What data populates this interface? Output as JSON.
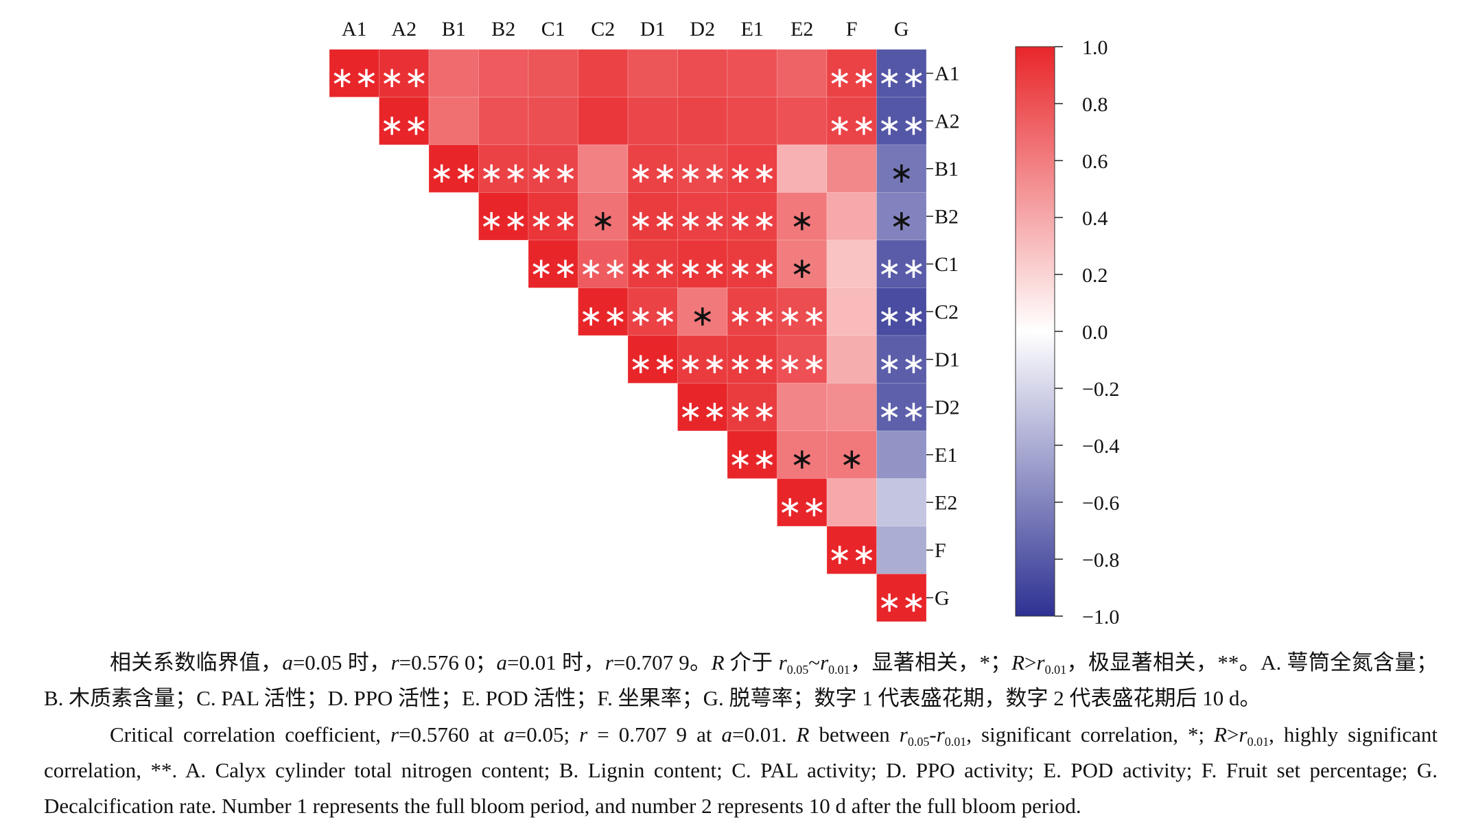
{
  "chart_data": {
    "type": "heatmap",
    "variables": [
      "A1",
      "A2",
      "B1",
      "B2",
      "C1",
      "C2",
      "D1",
      "D2",
      "E1",
      "E2",
      "F",
      "G"
    ],
    "x_labels": [
      "A1",
      "A2",
      "B1",
      "B2",
      "C1",
      "C2",
      "D1",
      "D2",
      "E1",
      "E2",
      "F",
      "G"
    ],
    "y_labels": [
      "A1",
      "A2",
      "B1",
      "B2",
      "C1",
      "C2",
      "D1",
      "D2",
      "E1",
      "E2",
      "F",
      "G"
    ],
    "matrix": [
      [
        1.0,
        0.95,
        0.68,
        0.76,
        0.78,
        0.87,
        0.78,
        0.82,
        0.8,
        0.72,
        0.87,
        -0.82
      ],
      [
        null,
        1.0,
        0.66,
        0.8,
        0.81,
        0.92,
        0.85,
        0.86,
        0.84,
        0.8,
        0.86,
        -0.82
      ],
      [
        null,
        null,
        1.0,
        0.87,
        0.86,
        0.58,
        0.87,
        0.84,
        0.88,
        0.36,
        0.55,
        -0.66
      ],
      [
        null,
        null,
        null,
        1.0,
        0.93,
        0.65,
        0.9,
        0.88,
        0.88,
        0.62,
        0.4,
        -0.6
      ],
      [
        null,
        null,
        null,
        null,
        1.0,
        0.75,
        0.9,
        0.93,
        0.9,
        0.6,
        0.28,
        -0.79
      ],
      [
        null,
        null,
        null,
        null,
        null,
        1.0,
        0.87,
        0.62,
        0.87,
        0.82,
        0.32,
        -0.87
      ],
      [
        null,
        null,
        null,
        null,
        null,
        null,
        1.0,
        0.9,
        0.9,
        0.8,
        0.38,
        -0.78
      ],
      [
        null,
        null,
        null,
        null,
        null,
        null,
        null,
        1.0,
        0.9,
        0.56,
        0.52,
        -0.77
      ],
      [
        null,
        null,
        null,
        null,
        null,
        null,
        null,
        null,
        1.0,
        0.62,
        0.62,
        -0.52
      ],
      [
        null,
        null,
        null,
        null,
        null,
        null,
        null,
        null,
        null,
        1.0,
        0.4,
        -0.28
      ],
      [
        null,
        null,
        null,
        null,
        null,
        null,
        null,
        null,
        null,
        null,
        1.0,
        -0.4
      ],
      [
        null,
        null,
        null,
        null,
        null,
        null,
        null,
        null,
        null,
        null,
        null,
        1.0
      ]
    ],
    "significance": [
      [
        "**",
        "**",
        "",
        "",
        "",
        "",
        "",
        "",
        "",
        "",
        "**",
        "**"
      ],
      [
        "",
        "**",
        "",
        "",
        "",
        "",
        "",
        "",
        "",
        "",
        "**",
        "**"
      ],
      [
        "",
        "",
        "**",
        "**",
        "**",
        "",
        "**",
        "**",
        "**",
        "",
        "",
        "*"
      ],
      [
        "",
        "",
        "",
        "**",
        "**",
        "*",
        "**",
        "**",
        "**",
        "*",
        "",
        "*"
      ],
      [
        "",
        "",
        "",
        "",
        "**",
        "**",
        "**",
        "**",
        "**",
        "*",
        "",
        "**"
      ],
      [
        "",
        "",
        "",
        "",
        "",
        "**",
        "**",
        "*",
        "**",
        "**",
        "",
        "**"
      ],
      [
        "",
        "",
        "",
        "",
        "",
        "",
        "**",
        "**",
        "**",
        "**",
        "",
        "**"
      ],
      [
        "",
        "",
        "",
        "",
        "",
        "",
        "",
        "**",
        "**",
        "",
        "",
        "**"
      ],
      [
        "",
        "",
        "",
        "",
        "",
        "",
        "",
        "",
        "**",
        "*",
        "*",
        ""
      ],
      [
        "",
        "",
        "",
        "",
        "",
        "",
        "",
        "",
        "",
        "**",
        "",
        ""
      ],
      [
        "",
        "",
        "",
        "",
        "",
        "",
        "",
        "",
        "",
        "",
        "**",
        ""
      ],
      [
        "",
        "",
        "",
        "",
        "",
        "",
        "",
        "",
        "",
        "",
        "",
        "**"
      ]
    ],
    "colorbar": {
      "range": [
        -1.0,
        1.0
      ],
      "ticks": [
        "1.0",
        "0.8",
        "0.6",
        "0.4",
        "0.2",
        "0.0",
        "−0.2",
        "−0.4",
        "−0.6",
        "−0.8",
        "−1.0"
      ],
      "color_high": "#e8262a",
      "color_mid": "#ffffff",
      "color_low": "#2e3192"
    }
  },
  "caption": {
    "cn": {
      "t1": "相关系数临界值，",
      "a1": "a",
      "t2": "=0.05 时，",
      "r1": "r",
      "t3": "=0.576 0；",
      "a2": "a",
      "t4": "=0.01 时，",
      "r2": "r",
      "t5": "=0.707 9。",
      "R1": "R",
      "t6": " 介于 ",
      "r3": "r",
      "s1": "0.05",
      "t7": "~",
      "r4": "r",
      "s2": "0.01",
      "t8": "，显著相关，*；",
      "R2": "R",
      "t9": ">",
      "r5": "r",
      "s3": "0.01",
      "t10": "，极显著相关，**。A. 萼筒全氮含量；B. 木质素含量；C. PAL 活性；D. PPO 活性；E. POD 活性；F. 坐果率；G. 脱萼率；数字 1 代表盛花期，数字 2 代表盛花期后 10 d。"
    },
    "en": {
      "t1": "Critical correlation coefficient, ",
      "r1": "r",
      "t2": "=0.5760 at ",
      "a1": "a",
      "t3": "=0.05; ",
      "r2": "r",
      "t4": " = 0.707 9 at ",
      "a2": "a",
      "t5": "=0.01. ",
      "R1": "R",
      "t6": " between ",
      "r3": "r",
      "s1": "0.05",
      "t7": "-",
      "r4": "r",
      "s2": "0.01",
      "t8": ", significant correlation, *; ",
      "R2": "R",
      "t9": ">",
      "r5": "r",
      "s3": "0.01",
      "t10": ", highly significant correlation, **. A. Calyx cylinder total nitrogen content; B. Lignin content; C. PAL activity; D. PPO activity; E. POD activity; F. Fruit set percentage; G. Decalcification rate. Number 1 represents the full bloom period, and number 2 represents 10 d after the full bloom period."
    }
  }
}
